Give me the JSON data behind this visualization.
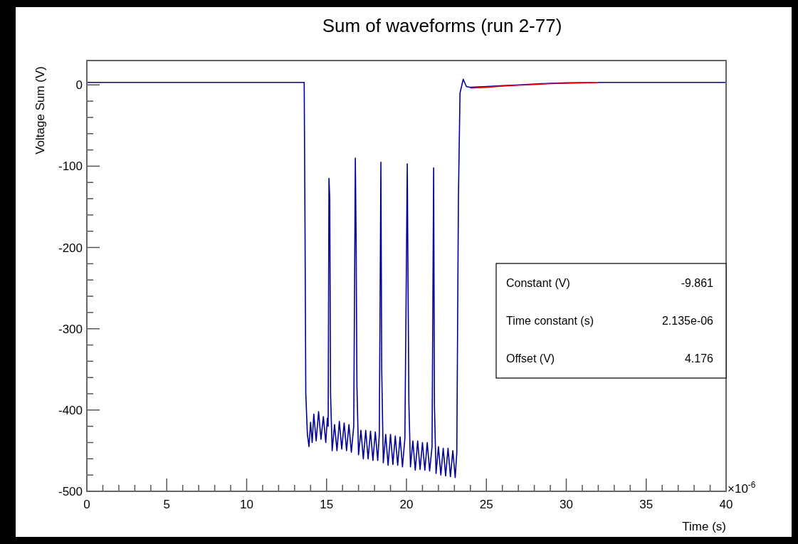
{
  "chart_data": {
    "type": "line",
    "title": "Sum of waveforms (run 2-77)",
    "xlabel": "Time (s)",
    "ylabel": "Voltage Sum (V)",
    "xlim": [
      0,
      40
    ],
    "xticks": [
      0,
      5,
      10,
      15,
      20,
      25,
      30,
      35,
      40
    ],
    "ylim": [
      -500,
      30
    ],
    "yticks": [
      -500,
      -400,
      -300,
      -200,
      -100,
      0
    ],
    "annotations": [
      "×10$^{-6}$",
      "Constant (V)",
      "-9.861",
      "Time constant (s)",
      "2.135e-06",
      "Offset (V)",
      "4.176"
    ],
    "series": [
      {
        "color": "#000099",
        "x": [
          0,
          13.55,
          13.6,
          13.65,
          13.7,
          13.8,
          13.9,
          14.0,
          14.1,
          14.2,
          14.35,
          14.5,
          14.65,
          14.8,
          14.95,
          15.05,
          15.1,
          15.15,
          15.2,
          15.25,
          15.35,
          15.5,
          15.65,
          15.8,
          15.95,
          16.1,
          16.25,
          16.4,
          16.55,
          16.7,
          16.8,
          16.85,
          16.9,
          17.0,
          17.15,
          17.3,
          17.45,
          17.6,
          17.75,
          17.9,
          18.05,
          18.2,
          18.3,
          18.4,
          18.45,
          18.55,
          18.7,
          18.85,
          19.0,
          19.15,
          19.3,
          19.45,
          19.6,
          19.75,
          19.9,
          20.05,
          20.1,
          20.15,
          20.25,
          20.4,
          20.55,
          20.7,
          20.85,
          21.0,
          21.15,
          21.3,
          21.45,
          21.6,
          21.7,
          21.75,
          21.85,
          22.0,
          22.15,
          22.3,
          22.45,
          22.6,
          22.75,
          22.9,
          23.05,
          23.15,
          23.25,
          23.35,
          23.55,
          23.75,
          24.0,
          25,
          26,
          27,
          28,
          29,
          30,
          32,
          35,
          40
        ],
        "values": [
          3,
          3,
          3,
          -170,
          -380,
          -430,
          -445,
          -415,
          -440,
          -405,
          -438,
          -402,
          -436,
          -408,
          -440,
          -410,
          -420,
          -115,
          -140,
          -380,
          -450,
          -418,
          -450,
          -414,
          -448,
          -416,
          -450,
          -418,
          -452,
          -420,
          -90,
          -190,
          -370,
          -455,
          -425,
          -460,
          -425,
          -460,
          -426,
          -462,
          -427,
          -462,
          -430,
          -95,
          -350,
          -465,
          -430,
          -468,
          -430,
          -467,
          -432,
          -468,
          -433,
          -470,
          -435,
          -97,
          -250,
          -390,
          -470,
          -438,
          -474,
          -438,
          -473,
          -440,
          -474,
          -440,
          -475,
          -445,
          -102,
          -395,
          -478,
          -445,
          -480,
          -447,
          -481,
          -447,
          -482,
          -450,
          -483,
          -452,
          -140,
          -10,
          7,
          -2,
          -3,
          -2,
          -1,
          0,
          1,
          2,
          2.5,
          3,
          3,
          3
        ]
      },
      {
        "color": "#ff0000",
        "x": [
          24,
          25,
          26,
          27,
          28,
          29,
          30,
          31,
          32
        ],
        "values": [
          -4,
          -3,
          -1.5,
          -0.5,
          0.5,
          1.5,
          2,
          2.5,
          3
        ]
      }
    ]
  }
}
